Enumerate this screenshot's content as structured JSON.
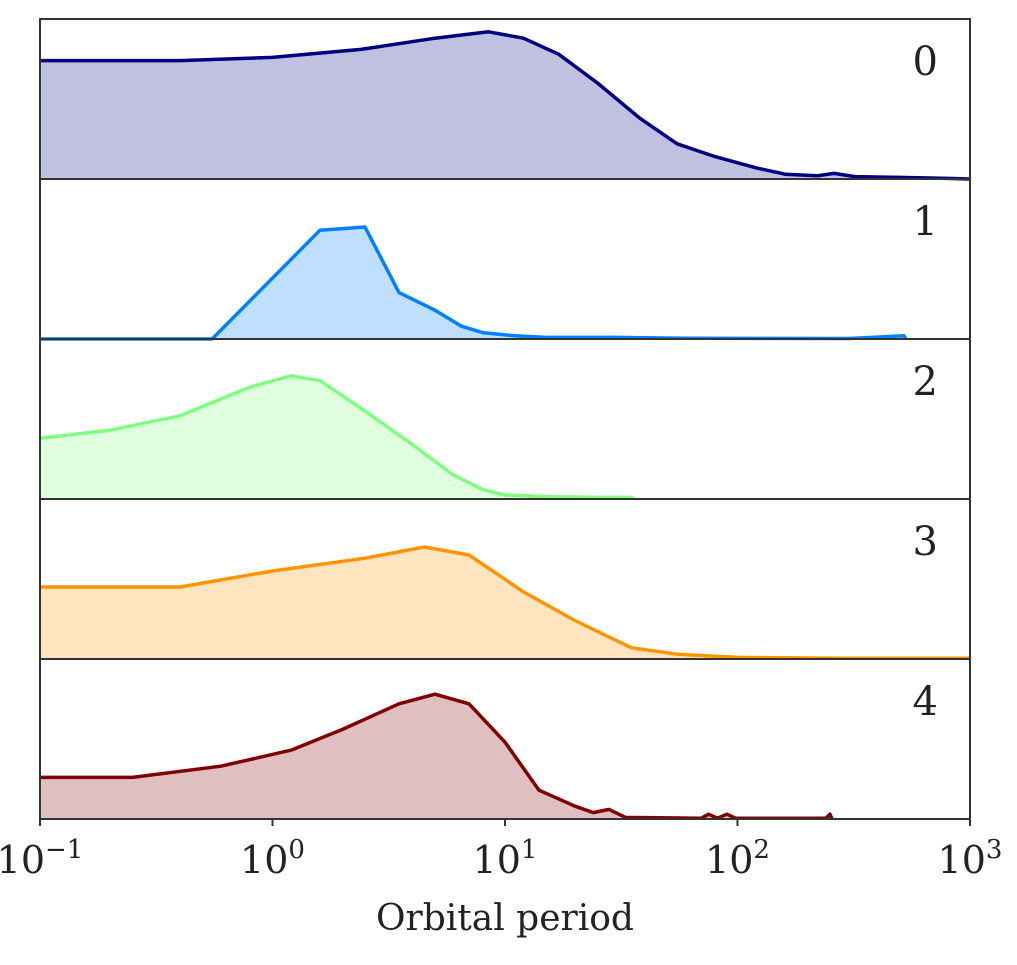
{
  "chart_data": {
    "type": "area",
    "subtype": "stacked-panels-density",
    "title": "",
    "xlabel": "Orbital period",
    "ylabel": "",
    "xscale": "log",
    "xlim": [
      0.1,
      1000
    ],
    "x_ticks": [
      {
        "base": "10",
        "exp": "−1",
        "value": 0.1
      },
      {
        "base": "10",
        "exp": "0",
        "value": 1
      },
      {
        "base": "10",
        "exp": "1",
        "value": 10
      },
      {
        "base": "10",
        "exp": "2",
        "value": 100
      },
      {
        "base": "10",
        "exp": "3",
        "value": 1000
      }
    ],
    "ylim": [
      0,
      1
    ],
    "grid": false,
    "series": [
      {
        "name": "0",
        "color": "#000080",
        "fill": "#c0c0e0",
        "points": [
          [
            0.1,
            0.74
          ],
          [
            0.4,
            0.74
          ],
          [
            1,
            0.76
          ],
          [
            2.4,
            0.81
          ],
          [
            5,
            0.88
          ],
          [
            8.5,
            0.92
          ],
          [
            12,
            0.88
          ],
          [
            17,
            0.78
          ],
          [
            25,
            0.6
          ],
          [
            38,
            0.38
          ],
          [
            55,
            0.22
          ],
          [
            80,
            0.14
          ],
          [
            120,
            0.07
          ],
          [
            160,
            0.03
          ],
          [
            220,
            0.02
          ],
          [
            260,
            0.035
          ],
          [
            320,
            0.015
          ],
          [
            500,
            0.01
          ],
          [
            800,
            0.004
          ],
          [
            1000,
            0.0
          ]
        ]
      },
      {
        "name": "1",
        "color": "#0080ff",
        "fill": "#bfdfff",
        "points": [
          [
            0.1,
            0.0
          ],
          [
            0.55,
            0.0
          ],
          [
            1.6,
            0.68
          ],
          [
            2.5,
            0.7
          ],
          [
            3.5,
            0.29
          ],
          [
            5,
            0.18
          ],
          [
            6.5,
            0.08
          ],
          [
            8,
            0.04
          ],
          [
            11,
            0.02
          ],
          [
            15,
            0.01
          ],
          [
            30,
            0.01
          ],
          [
            60,
            0.005
          ],
          [
            120,
            0.004
          ],
          [
            300,
            0.003
          ],
          [
            520,
            0.02
          ],
          [
            530,
            0.0
          ]
        ]
      },
      {
        "name": "2",
        "color": "#7fff7f",
        "fill": "#dfffdf",
        "points": [
          [
            0.1,
            0.38
          ],
          [
            0.2,
            0.43
          ],
          [
            0.4,
            0.52
          ],
          [
            0.8,
            0.7
          ],
          [
            1.2,
            0.77
          ],
          [
            1.6,
            0.74
          ],
          [
            2.5,
            0.55
          ],
          [
            4,
            0.34
          ],
          [
            6,
            0.15
          ],
          [
            8,
            0.06
          ],
          [
            10,
            0.025
          ],
          [
            15,
            0.015
          ],
          [
            25,
            0.01
          ],
          [
            35,
            0.01
          ],
          [
            36,
            0.0
          ]
        ]
      },
      {
        "name": "3",
        "color": "#ff9400",
        "fill": "#ffe4c0",
        "points": [
          [
            0.1,
            0.45
          ],
          [
            0.4,
            0.45
          ],
          [
            1,
            0.55
          ],
          [
            2.5,
            0.63
          ],
          [
            4.5,
            0.7
          ],
          [
            7,
            0.65
          ],
          [
            12,
            0.42
          ],
          [
            20,
            0.24
          ],
          [
            35,
            0.07
          ],
          [
            55,
            0.03
          ],
          [
            100,
            0.01
          ],
          [
            300,
            0.005
          ],
          [
            600,
            0.005
          ],
          [
            1000,
            0.005
          ]
        ]
      },
      {
        "name": "4",
        "color": "#800000",
        "fill": "#dfbfbf",
        "points": [
          [
            0.1,
            0.26
          ],
          [
            0.25,
            0.26
          ],
          [
            0.6,
            0.33
          ],
          [
            1.2,
            0.43
          ],
          [
            2,
            0.56
          ],
          [
            3.5,
            0.72
          ],
          [
            5,
            0.78
          ],
          [
            7,
            0.72
          ],
          [
            10,
            0.48
          ],
          [
            14,
            0.18
          ],
          [
            20,
            0.08
          ],
          [
            24,
            0.04
          ],
          [
            28,
            0.06
          ],
          [
            33,
            0.01
          ],
          [
            70,
            0.005
          ],
          [
            75,
            0.03
          ],
          [
            82,
            0.005
          ],
          [
            90,
            0.03
          ],
          [
            98,
            0.005
          ],
          [
            240,
            0.005
          ],
          [
            250,
            0.03
          ],
          [
            255,
            0.0
          ]
        ]
      }
    ]
  }
}
